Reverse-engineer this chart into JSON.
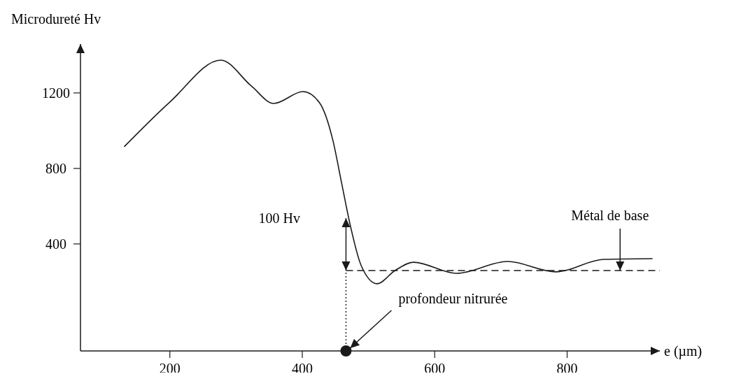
{
  "chart_data": {
    "type": "line",
    "ylabel": "Microdureté Hv",
    "xlabel": "e (µm)",
    "x": [
      131,
      201,
      277,
      323,
      357,
      401,
      426,
      446,
      459,
      471,
      489,
      513,
      540,
      568,
      633,
      710,
      783,
      855,
      929
    ],
    "series": [
      {
        "color": "#1a1a1a",
        "values": [
          915,
          1155,
          1374,
          1237,
          1144,
          1207,
          1148,
          952,
          730,
          522,
          285,
          189,
          259,
          303,
          244,
          307,
          252,
          318,
          322
        ]
      }
    ],
    "xlim": [
      65,
      940
    ],
    "ylim": [
      -167,
      1459
    ],
    "xticks": [
      200,
      400,
      600,
      800
    ],
    "yticks": [
      400,
      800,
      1200
    ],
    "grid": false,
    "marker": "none",
    "line_style": "solid",
    "ref_lines": [
      {
        "axis": "y",
        "value": 259,
        "line_style": "dashed",
        "color": "#1a1a1a"
      },
      {
        "axis": "x",
        "value": 466,
        "line_style": "dotted",
        "color": "#1a1a1a"
      }
    ],
    "annotations": [
      "100 Hv",
      {
        "text": "Métal de base",
        "x": 880,
        "y": 259
      },
      "profondeur nitrurée"
    ]
  }
}
